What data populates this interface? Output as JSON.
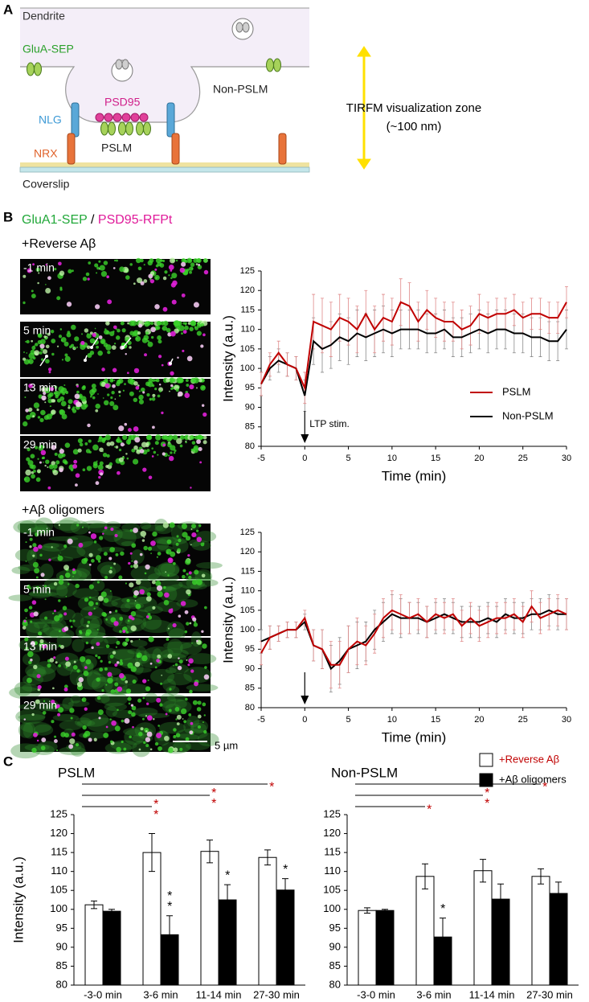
{
  "panel_labels": [
    "A",
    "B",
    "C"
  ],
  "diagram": {
    "dendrite": "Dendrite",
    "receptor": "GluA-SEP",
    "scaffold": "PSD95",
    "non_synaptic": "Non-PSLM",
    "nlg": "NLG",
    "synaptic": "PSLM",
    "nrx": "NRX",
    "coverslip": "Coverslip",
    "zone": "TIRFM visualization zone",
    "zone_depth": "(~100 nm)"
  },
  "images": {
    "channels": [
      "GluA1-SEP",
      "/",
      "PSD95-RFPt"
    ],
    "reverse": {
      "title": "+Reverse Aβ",
      "time_labels": [
        "-1 min",
        "5 min",
        "13 min",
        "29 min"
      ]
    },
    "oligomers": {
      "title": "+Aβ oligomers",
      "time_labels": [
        "-1 min",
        "5 min",
        "13 min",
        "29 min"
      ]
    },
    "scale_bar": "5 µm"
  },
  "chart_data": [
    {
      "type": "line",
      "xlabel": "Time (min)",
      "ylabel": "Intensity (a.u.)",
      "x": [
        -5,
        -4,
        -3,
        -2,
        -1,
        0,
        1,
        2,
        3,
        4,
        5,
        6,
        7,
        8,
        9,
        10,
        11,
        12,
        13,
        14,
        15,
        16,
        17,
        18,
        19,
        20,
        21,
        22,
        23,
        24,
        25,
        26,
        27,
        28,
        29,
        30
      ],
      "xlim": [
        -5,
        30
      ],
      "xticks": [
        -5,
        0,
        5,
        10,
        15,
        20,
        25,
        30
      ],
      "ylim": [
        80,
        125
      ],
      "yticks": [
        80,
        85,
        90,
        95,
        100,
        105,
        110,
        115,
        120,
        125
      ],
      "stimulus": {
        "x": 0,
        "label": "LTP stim."
      },
      "series": [
        {
          "name": "Non-PSLM",
          "color": "#000000",
          "error_color": "#8a8a8a",
          "values": [
            96,
            100,
            102,
            101,
            100,
            93,
            107,
            105,
            106,
            108,
            107,
            109,
            108,
            109,
            110,
            109,
            110,
            110,
            110,
            109,
            109,
            110,
            108,
            108,
            109,
            110,
            109,
            110,
            110,
            109,
            109,
            108,
            108,
            107,
            107,
            110
          ],
          "errors": [
            3,
            3,
            3,
            3,
            3,
            4,
            6,
            6,
            6,
            6,
            6,
            6,
            6,
            6,
            6,
            6,
            5,
            5,
            5,
            5,
            5,
            5,
            5,
            5,
            5,
            5,
            5,
            5,
            5,
            5,
            5,
            5,
            5,
            5,
            5,
            5
          ]
        },
        {
          "name": "PSLM",
          "color": "#c00000",
          "error_color": "#e08a8a",
          "values": [
            96,
            101,
            104,
            101,
            100,
            95,
            112,
            111,
            110,
            113,
            112,
            110,
            114,
            110,
            113,
            112,
            117,
            116,
            112,
            115,
            113,
            112,
            112,
            110,
            111,
            114,
            113,
            114,
            114,
            115,
            113,
            114,
            114,
            113,
            113,
            117
          ],
          "errors": [
            3,
            3,
            3,
            3,
            3,
            4,
            7,
            7,
            7,
            6,
            6,
            6,
            6,
            6,
            6,
            6,
            6,
            6,
            5,
            5,
            5,
            5,
            5,
            5,
            5,
            5,
            4,
            4,
            4,
            4,
            4,
            4,
            4,
            4,
            4,
            4
          ]
        }
      ]
    },
    {
      "type": "line",
      "xlabel": "Time (min)",
      "ylabel": "Intensity (a.u.)",
      "x": [
        -5,
        -4,
        -3,
        -2,
        -1,
        0,
        1,
        2,
        3,
        4,
        5,
        6,
        7,
        8,
        9,
        10,
        11,
        12,
        13,
        14,
        15,
        16,
        17,
        18,
        19,
        20,
        21,
        22,
        23,
        24,
        25,
        26,
        27,
        28,
        29,
        30
      ],
      "xlim": [
        -5,
        30
      ],
      "xticks": [
        -5,
        0,
        5,
        10,
        15,
        20,
        25,
        30
      ],
      "ylim": [
        80,
        125
      ],
      "yticks": [
        80,
        85,
        90,
        95,
        100,
        105,
        110,
        115,
        120,
        125
      ],
      "stimulus": {
        "x": 0
      },
      "series": [
        {
          "color": "#000000",
          "error_color": "#8a8a8a",
          "values": [
            97,
            98,
            99,
            100,
            100,
            102,
            96,
            95,
            90,
            92,
            95,
            96,
            97,
            100,
            102,
            104,
            103,
            103,
            103,
            102,
            103,
            104,
            103,
            102,
            102,
            102,
            103,
            102,
            104,
            103,
            103,
            104,
            104,
            105,
            104,
            104
          ],
          "errors": [
            3,
            3,
            2,
            2,
            2,
            2,
            4,
            5,
            6,
            6,
            6,
            6,
            5,
            5,
            5,
            5,
            5,
            4,
            4,
            4,
            4,
            4,
            4,
            4,
            4,
            4,
            4,
            4,
            4,
            4,
            4,
            4,
            4,
            4,
            4,
            4
          ]
        },
        {
          "color": "#c00000",
          "error_color": "#e08a8a",
          "values": [
            94,
            98,
            99,
            100,
            100,
            103,
            96,
            95,
            91,
            91,
            95,
            97,
            96,
            99,
            103,
            105,
            104,
            103,
            104,
            102,
            104,
            103,
            104,
            101,
            103,
            101,
            102,
            103,
            103,
            104,
            102,
            106,
            103,
            104,
            105,
            104
          ],
          "errors": [
            3,
            3,
            2,
            2,
            2,
            2,
            4,
            5,
            6,
            6,
            6,
            6,
            5,
            5,
            5,
            5,
            5,
            4,
            4,
            4,
            4,
            4,
            4,
            4,
            4,
            4,
            4,
            4,
            4,
            4,
            4,
            4,
            4,
            4,
            4,
            4
          ]
        }
      ]
    },
    {
      "type": "bar",
      "title": "PSLM",
      "ylabel": "Intensity (a.u.)",
      "categories": [
        "-3-0 min",
        "3-6 min",
        "11-14 min",
        "27-30 min"
      ],
      "ylim": [
        80,
        125
      ],
      "yticks": [
        80,
        85,
        90,
        95,
        100,
        105,
        110,
        115,
        120,
        125
      ],
      "series": [
        {
          "color": "#ffffff",
          "values": [
            101.2,
            115,
            115.3,
            113.7
          ],
          "errors": [
            1,
            5,
            3,
            2
          ]
        },
        {
          "color": "#000000",
          "values": [
            99.5,
            93.3,
            102.5,
            105.1
          ],
          "errors": [
            0.5,
            5,
            4,
            3
          ]
        }
      ],
      "bracket_labels": [
        null,
        "**",
        "**",
        "*"
      ],
      "bracket_color": "#c00000",
      "star_labels": [
        null,
        "**",
        "*",
        "*"
      ]
    },
    {
      "type": "bar",
      "title": "Non-PSLM",
      "categories": [
        "-3-0 min",
        "3-6 min",
        "11-14 min",
        "27-30 min"
      ],
      "ylim": [
        80,
        125
      ],
      "yticks": [
        80,
        85,
        90,
        95,
        100,
        105,
        110,
        115,
        120,
        125
      ],
      "series": [
        {
          "name": "+Reverse Aβ",
          "color": "#ffffff",
          "label_color": "#c00000",
          "values": [
            99.7,
            108.7,
            110.2,
            108.7
          ],
          "errors": [
            0.7,
            3.3,
            3,
            2
          ]
        },
        {
          "name": "+Aβ oligomers",
          "color": "#000000",
          "label_color": "#000000",
          "values": [
            99.7,
            92.7,
            102.7,
            104.2
          ],
          "errors": [
            0.3,
            5,
            4,
            3
          ]
        }
      ],
      "bracket_labels": [
        null,
        "*",
        "**",
        "*"
      ],
      "bracket_color": "#c00000",
      "star_labels": [
        null,
        "*",
        null,
        null
      ]
    }
  ]
}
